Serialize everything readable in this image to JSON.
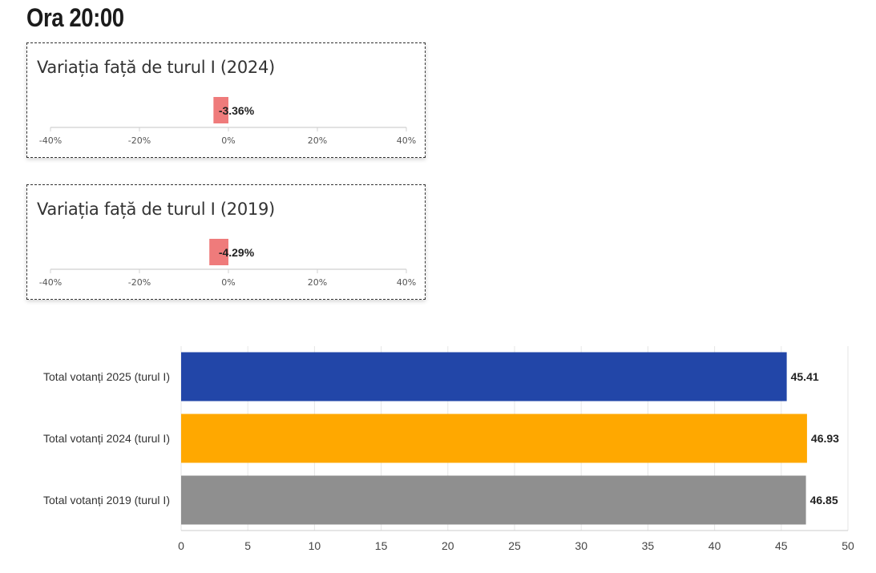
{
  "header": {
    "title": "Ora 20:00"
  },
  "colors": {
    "negative": "#ef7b7b",
    "blue": "#2246a8",
    "orange": "#ffa800",
    "gray": "#8f8f8f"
  },
  "chart_data": [
    {
      "type": "bar",
      "title": "Variația față de turul I (2024)",
      "categories": [
        ""
      ],
      "values": [
        -3.36
      ],
      "value_label": "-3.36%",
      "xlim": [
        -40,
        40
      ],
      "ticks": [
        "-40%",
        "-20%",
        "0%",
        "20%",
        "40%"
      ],
      "tick_values": [
        -40,
        -20,
        0,
        20,
        40
      ]
    },
    {
      "type": "bar",
      "title": "Variația față de turul I (2019)",
      "categories": [
        ""
      ],
      "values": [
        -4.29
      ],
      "value_label": "-4.29%",
      "xlim": [
        -40,
        40
      ],
      "ticks": [
        "-40%",
        "-20%",
        "0%",
        "20%",
        "40%"
      ],
      "tick_values": [
        -40,
        -20,
        0,
        20,
        40
      ]
    },
    {
      "type": "bar",
      "orientation": "horizontal",
      "categories": [
        "Total votanți 2025 (turul I)",
        "Total votanți 2024 (turul I)",
        "Total votanți 2019 (turul I)"
      ],
      "values": [
        45.41,
        46.93,
        46.85
      ],
      "value_labels": [
        "45.41",
        "46.93",
        "46.85"
      ],
      "bar_colors": [
        "#2246a8",
        "#ffa800",
        "#8f8f8f"
      ],
      "xlim": [
        0,
        50
      ],
      "ticks": [
        "0",
        "5",
        "10",
        "15",
        "20",
        "25",
        "30",
        "35",
        "40",
        "45",
        "50"
      ],
      "tick_values": [
        0,
        5,
        10,
        15,
        20,
        25,
        30,
        35,
        40,
        45,
        50
      ],
      "grid": true
    }
  ]
}
